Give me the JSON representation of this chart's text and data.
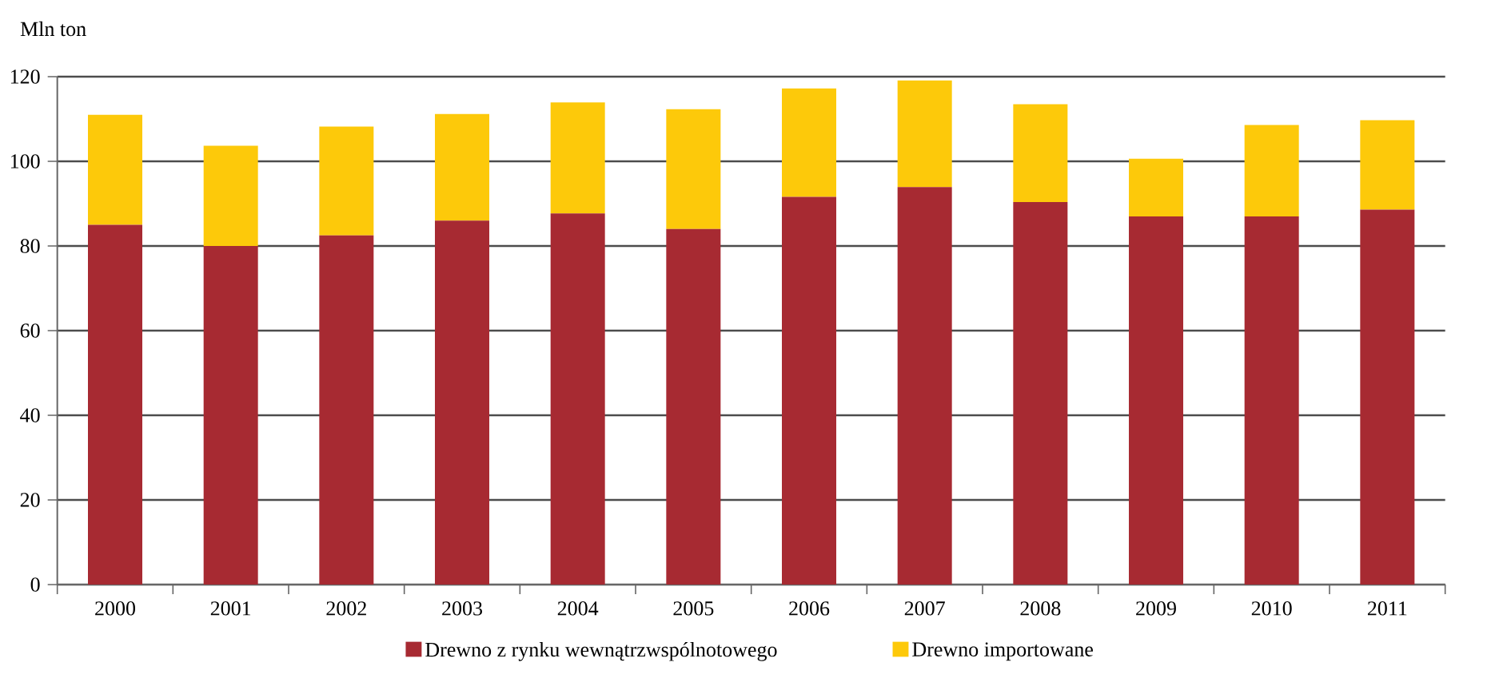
{
  "chart_data": {
    "type": "bar",
    "stacked": true,
    "ylabel": "Mln ton",
    "categories": [
      "2000",
      "2001",
      "2002",
      "2003",
      "2004",
      "2005",
      "2006",
      "2007",
      "2008",
      "2009",
      "2010",
      "2011"
    ],
    "series": [
      {
        "name": "Drewno z rynku wewnątrzwspólnotowego",
        "color": "#a72a32",
        "values": [
          85,
          80,
          82.5,
          86,
          87.7,
          84,
          91.6,
          93.9,
          90.4,
          87,
          87,
          88.6
        ]
      },
      {
        "name": "Drewno importowane",
        "color": "#fdc90a",
        "values": [
          26,
          23.7,
          25.7,
          25.2,
          26.2,
          28.3,
          25.6,
          25.2,
          23.1,
          13.6,
          21.6,
          21.1
        ]
      }
    ],
    "ylim": [
      0,
      120
    ],
    "yticks": [
      0,
      20,
      40,
      60,
      80,
      100,
      120
    ],
    "grid": "y",
    "legend": "bottom"
  }
}
